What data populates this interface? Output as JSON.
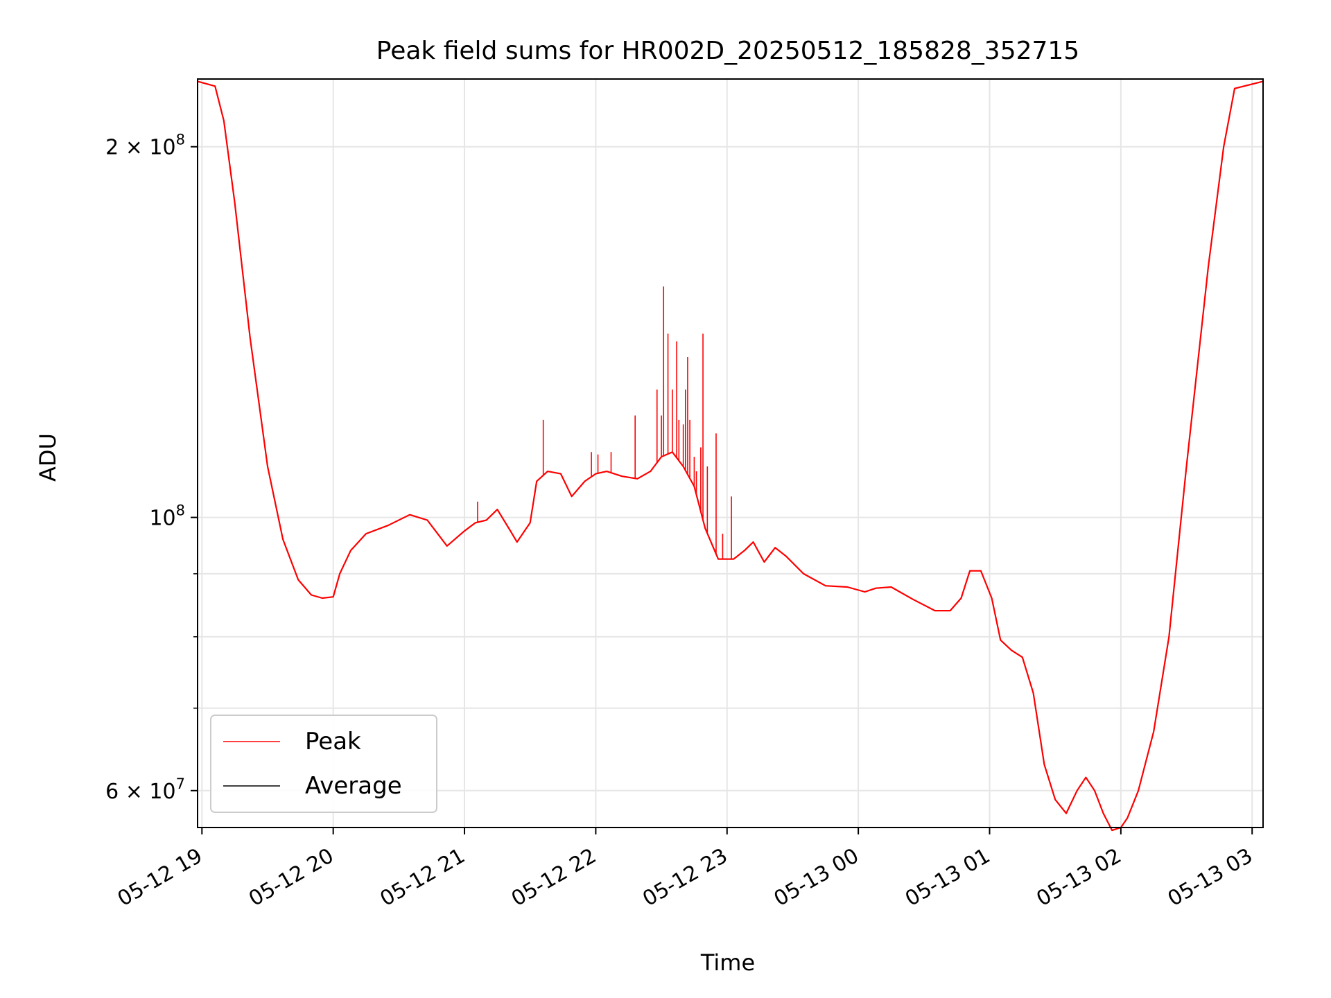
{
  "chart_data": {
    "type": "line",
    "title": "Peak field sums for HR002D_20250512_185828_352715",
    "xlabel": "Time",
    "ylabel": "ADU",
    "y_scale": "log",
    "grid": true,
    "legend_position": "lower-left",
    "x_range": [
      "2025-05-12 18:58",
      "2025-05-13 03:05"
    ],
    "y_range": [
      56000000,
      227000000
    ],
    "x_ticks": [
      {
        "t": "2025-05-12 19:00",
        "label": "05-12 19"
      },
      {
        "t": "2025-05-12 20:00",
        "label": "05-12 20"
      },
      {
        "t": "2025-05-12 21:00",
        "label": "05-12 21"
      },
      {
        "t": "2025-05-12 22:00",
        "label": "05-12 22"
      },
      {
        "t": "2025-05-12 23:00",
        "label": "05-12 23"
      },
      {
        "t": "2025-05-13 00:00",
        "label": "05-13 00"
      },
      {
        "t": "2025-05-13 01:00",
        "label": "05-13 01"
      },
      {
        "t": "2025-05-13 02:00",
        "label": "05-13 02"
      },
      {
        "t": "2025-05-13 03:00",
        "label": "05-13 03"
      }
    ],
    "y_ticks": [
      {
        "value": 200000000,
        "base": "2 × 10",
        "exp": "8"
      },
      {
        "value": 100000000,
        "base": "10",
        "exp": "8"
      },
      {
        "value": 60000000,
        "base": "6 × 10",
        "exp": "7"
      }
    ],
    "y_minor_ticks": [
      70000000,
      80000000,
      90000000
    ],
    "series": [
      {
        "name": "Peak",
        "color": "#ff0000"
      },
      {
        "name": "Average",
        "color": "#000000"
      }
    ],
    "average": {
      "t": [
        "2025-05-12 18:58",
        "2025-05-12 19:06",
        "2025-05-12 19:10",
        "2025-05-12 19:15",
        "2025-05-12 19:22",
        "2025-05-12 19:30",
        "2025-05-12 19:37",
        "2025-05-12 19:44",
        "2025-05-12 19:50",
        "2025-05-12 19:55",
        "2025-05-12 20:00",
        "2025-05-12 20:03",
        "2025-05-12 20:08",
        "2025-05-12 20:15",
        "2025-05-12 20:25",
        "2025-05-12 20:35",
        "2025-05-12 20:43",
        "2025-05-12 20:52",
        "2025-05-12 21:00",
        "2025-05-12 21:05",
        "2025-05-12 21:10",
        "2025-05-12 21:15",
        "2025-05-12 21:21",
        "2025-05-12 21:24",
        "2025-05-12 21:30",
        "2025-05-12 21:33",
        "2025-05-12 21:38",
        "2025-05-12 21:44",
        "2025-05-12 21:49",
        "2025-05-12 21:55",
        "2025-05-12 22:00",
        "2025-05-12 22:05",
        "2025-05-12 22:12",
        "2025-05-12 22:19",
        "2025-05-12 22:25",
        "2025-05-12 22:30",
        "2025-05-12 22:35",
        "2025-05-12 22:40",
        "2025-05-12 22:45",
        "2025-05-12 22:50",
        "2025-05-12 22:56",
        "2025-05-12 23:03",
        "2025-05-12 23:08",
        "2025-05-12 23:12",
        "2025-05-12 23:17",
        "2025-05-12 23:22",
        "2025-05-12 23:27",
        "2025-05-12 23:35",
        "2025-05-12 23:45",
        "2025-05-12 23:55",
        "2025-05-13 00:03",
        "2025-05-13 00:08",
        "2025-05-13 00:15",
        "2025-05-13 00:25",
        "2025-05-13 00:35",
        "2025-05-13 00:42",
        "2025-05-13 00:47",
        "2025-05-13 00:51",
        "2025-05-13 00:56",
        "2025-05-13 01:01",
        "2025-05-13 01:05",
        "2025-05-13 01:10",
        "2025-05-13 01:15",
        "2025-05-13 01:20",
        "2025-05-13 01:25",
        "2025-05-13 01:30",
        "2025-05-13 01:35",
        "2025-05-13 01:40",
        "2025-05-13 01:44",
        "2025-05-13 01:48",
        "2025-05-13 01:52",
        "2025-05-13 01:56",
        "2025-05-13 02:00",
        "2025-05-13 02:03",
        "2025-05-13 02:08",
        "2025-05-13 02:15",
        "2025-05-13 02:22",
        "2025-05-13 02:30",
        "2025-05-13 02:40",
        "2025-05-13 02:47",
        "2025-05-13 02:52",
        "2025-05-13 03:05"
      ],
      "y": [
        226000000,
        224000000,
        210000000,
        180000000,
        140000000,
        110000000,
        96000000,
        89000000,
        86500000,
        86000000,
        86200000,
        90000000,
        94000000,
        97000000,
        98500000,
        100500000,
        99500000,
        94800000,
        97500000,
        99000000,
        99500000,
        101500000,
        97500000,
        95500000,
        99000000,
        107000000,
        109000000,
        108500000,
        104000000,
        107000000,
        108500000,
        109000000,
        108000000,
        107500000,
        109000000,
        112000000,
        113000000,
        110000000,
        106000000,
        98000000,
        92500000,
        92500000,
        94000000,
        95500000,
        92000000,
        94500000,
        93000000,
        90000000,
        88000000,
        87800000,
        87000000,
        87600000,
        87800000,
        85800000,
        84000000,
        84000000,
        86000000,
        90500000,
        90500000,
        86000000,
        79500000,
        78000000,
        77000000,
        72000000,
        63000000,
        59000000,
        57500000,
        60000000,
        61500000,
        60000000,
        57500000,
        55700000,
        56000000,
        57000000,
        60000000,
        67000000,
        80000000,
        110000000,
        160000000,
        200000000,
        223000000,
        226000000
      ]
    },
    "peak_spikes": [
      {
        "t": "2025-05-12 21:06",
        "y": 103000000
      },
      {
        "t": "2025-05-12 21:36",
        "y": 120000000
      },
      {
        "t": "2025-05-12 21:58",
        "y": 113000000
      },
      {
        "t": "2025-05-12 22:01",
        "y": 112500000
      },
      {
        "t": "2025-05-12 22:07",
        "y": 113000000
      },
      {
        "t": "2025-05-12 22:18",
        "y": 121000000
      },
      {
        "t": "2025-05-12 22:28",
        "y": 127000000
      },
      {
        "t": "2025-05-12 22:30",
        "y": 121000000
      },
      {
        "t": "2025-05-12 22:31",
        "y": 154000000
      },
      {
        "t": "2025-05-12 22:33",
        "y": 141000000
      },
      {
        "t": "2025-05-12 22:35",
        "y": 127000000
      },
      {
        "t": "2025-05-12 22:37",
        "y": 139000000
      },
      {
        "t": "2025-05-12 22:38",
        "y": 120000000
      },
      {
        "t": "2025-05-12 22:40",
        "y": 119000000
      },
      {
        "t": "2025-05-12 22:41",
        "y": 127000000
      },
      {
        "t": "2025-05-12 22:42",
        "y": 135000000
      },
      {
        "t": "2025-05-12 22:43",
        "y": 120000000
      },
      {
        "t": "2025-05-12 22:45",
        "y": 112000000
      },
      {
        "t": "2025-05-12 22:46",
        "y": 109000000
      },
      {
        "t": "2025-05-12 22:48",
        "y": 114000000
      },
      {
        "t": "2025-05-12 22:49",
        "y": 141000000
      },
      {
        "t": "2025-05-12 22:51",
        "y": 110000000
      },
      {
        "t": "2025-05-12 22:55",
        "y": 117000000
      },
      {
        "t": "2025-05-12 22:58",
        "y": 97000000
      },
      {
        "t": "2025-05-12 23:02",
        "y": 104000000
      }
    ]
  }
}
